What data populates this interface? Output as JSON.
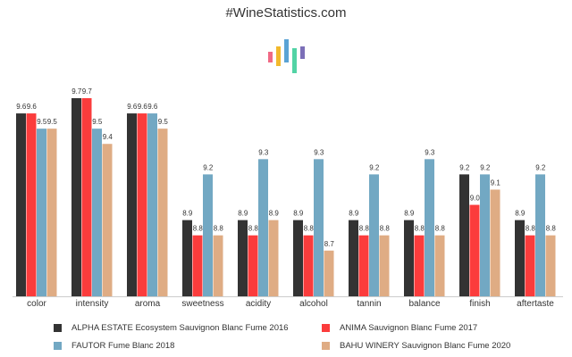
{
  "title": "#WineStatistics.com",
  "chart_data": {
    "type": "bar",
    "title": "",
    "categories": [
      "color",
      "intensity",
      "aroma",
      "sweetness",
      "acidity",
      "alcohol",
      "tannin",
      "balance",
      "finish",
      "aftertaste"
    ],
    "series": [
      {
        "name": "ALPHA ESTATE Ecosystem Sauvignon Blanc Fume 2016",
        "color": "#333333",
        "values": [
          9.6,
          9.7,
          9.6,
          8.9,
          8.9,
          8.9,
          8.9,
          8.9,
          9.2,
          8.9
        ]
      },
      {
        "name": "ANIMA Sauvignon Blanc Fume 2017",
        "color": "#fb3c3c",
        "values": [
          9.6,
          9.7,
          9.6,
          8.8,
          8.8,
          8.8,
          8.8,
          8.8,
          9.0,
          8.8
        ]
      },
      {
        "name": "FAUTOR Fume Blanc 2018",
        "color": "#72a8c3",
        "values": [
          9.5,
          9.5,
          9.6,
          9.2,
          9.3,
          9.3,
          9.2,
          9.3,
          9.2,
          9.2
        ]
      },
      {
        "name": "BAHU WINERY Sauvignon Blanc Fume 2020",
        "color": "#dfac84",
        "values": [
          9.5,
          9.4,
          9.5,
          8.8,
          8.9,
          8.7,
          8.8,
          8.8,
          9.1,
          8.8
        ]
      }
    ],
    "value_labels": [
      [
        "9.6",
        "9.7",
        "9.6",
        "8.9",
        "8.9",
        "8.9",
        "8.9",
        "8.9",
        "9.2",
        "8.9"
      ],
      [
        "9.6",
        "9.7",
        "9.6",
        "8.8",
        "8.8",
        "8.8",
        "8.8",
        "8.8",
        "9.0",
        "8.8"
      ],
      [
        "9.5",
        "9.5",
        "9.6",
        "9.2",
        "9.3",
        "9.3",
        "9.2",
        "9.3",
        "9.2",
        "9.2"
      ],
      [
        "9.5",
        "9.4",
        "9.5",
        "8.8",
        "8.9",
        "8.7",
        "8.8",
        "8.8",
        "9.1",
        "8.8"
      ]
    ],
    "xlabel": "",
    "ylabel": "",
    "ylim": [
      8.4,
      9.8
    ],
    "grid": false,
    "legend_position": "bottom"
  },
  "logo_bars": [
    {
      "color": "#f06a85"
    },
    {
      "color": "#f2b92c"
    },
    {
      "color": "#5aa3d5"
    },
    {
      "color": "#52d3a5"
    },
    {
      "color": "#7c6fb8"
    }
  ]
}
